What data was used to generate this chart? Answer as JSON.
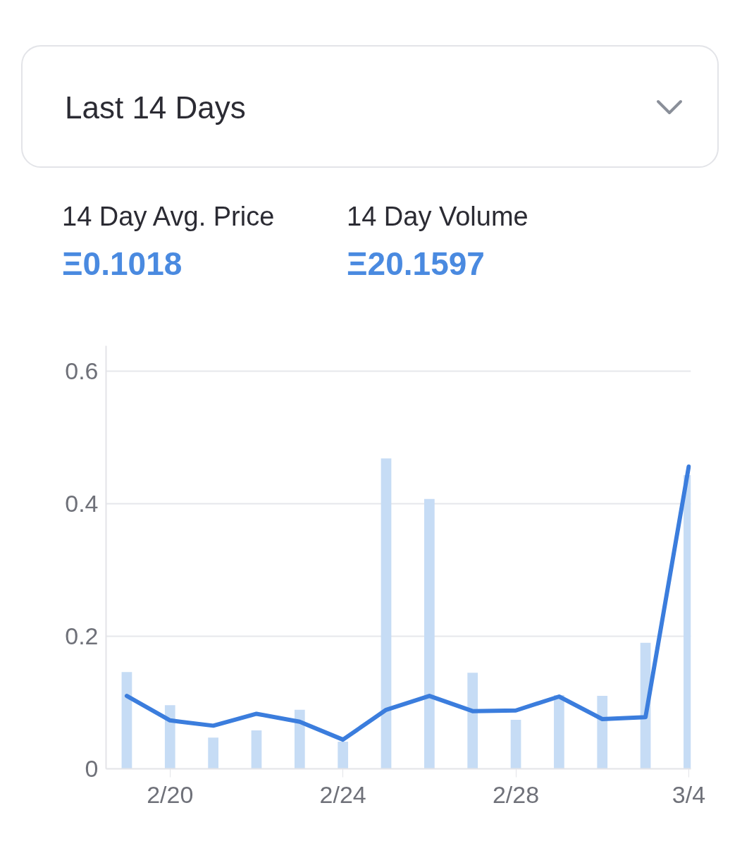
{
  "chart_data": {
    "type": "bar",
    "title": "Last 14 Days",
    "annotations": [
      "14 Day Avg. Price",
      "Ξ0.1018",
      "14 Day Volume",
      "Ξ20.1597"
    ],
    "categories": [
      null,
      "2/20",
      null,
      null,
      null,
      "2/24",
      null,
      null,
      null,
      "2/28",
      null,
      null,
      null,
      "3/4"
    ],
    "series": [
      {
        "color": "#c6dcf5",
        "values": [
          0.146,
          0.096,
          0.047,
          0.058,
          0.089,
          0.041,
          0.468,
          0.407,
          0.145,
          0.074,
          0.111,
          0.11,
          0.19,
          0.443
        ]
      },
      {
        "type": "line",
        "color": "#3b7ddd",
        "values": [
          0.11,
          0.073,
          0.065,
          0.083,
          0.071,
          0.044,
          0.089,
          0.11,
          0.087,
          0.088,
          0.109,
          0.075,
          0.078,
          0.456
        ]
      }
    ],
    "ylim": [
      0,
      0.638
    ],
    "yticks": [
      0,
      0.2,
      0.4,
      0.6
    ],
    "grid": "y",
    "line_style": "solid"
  }
}
